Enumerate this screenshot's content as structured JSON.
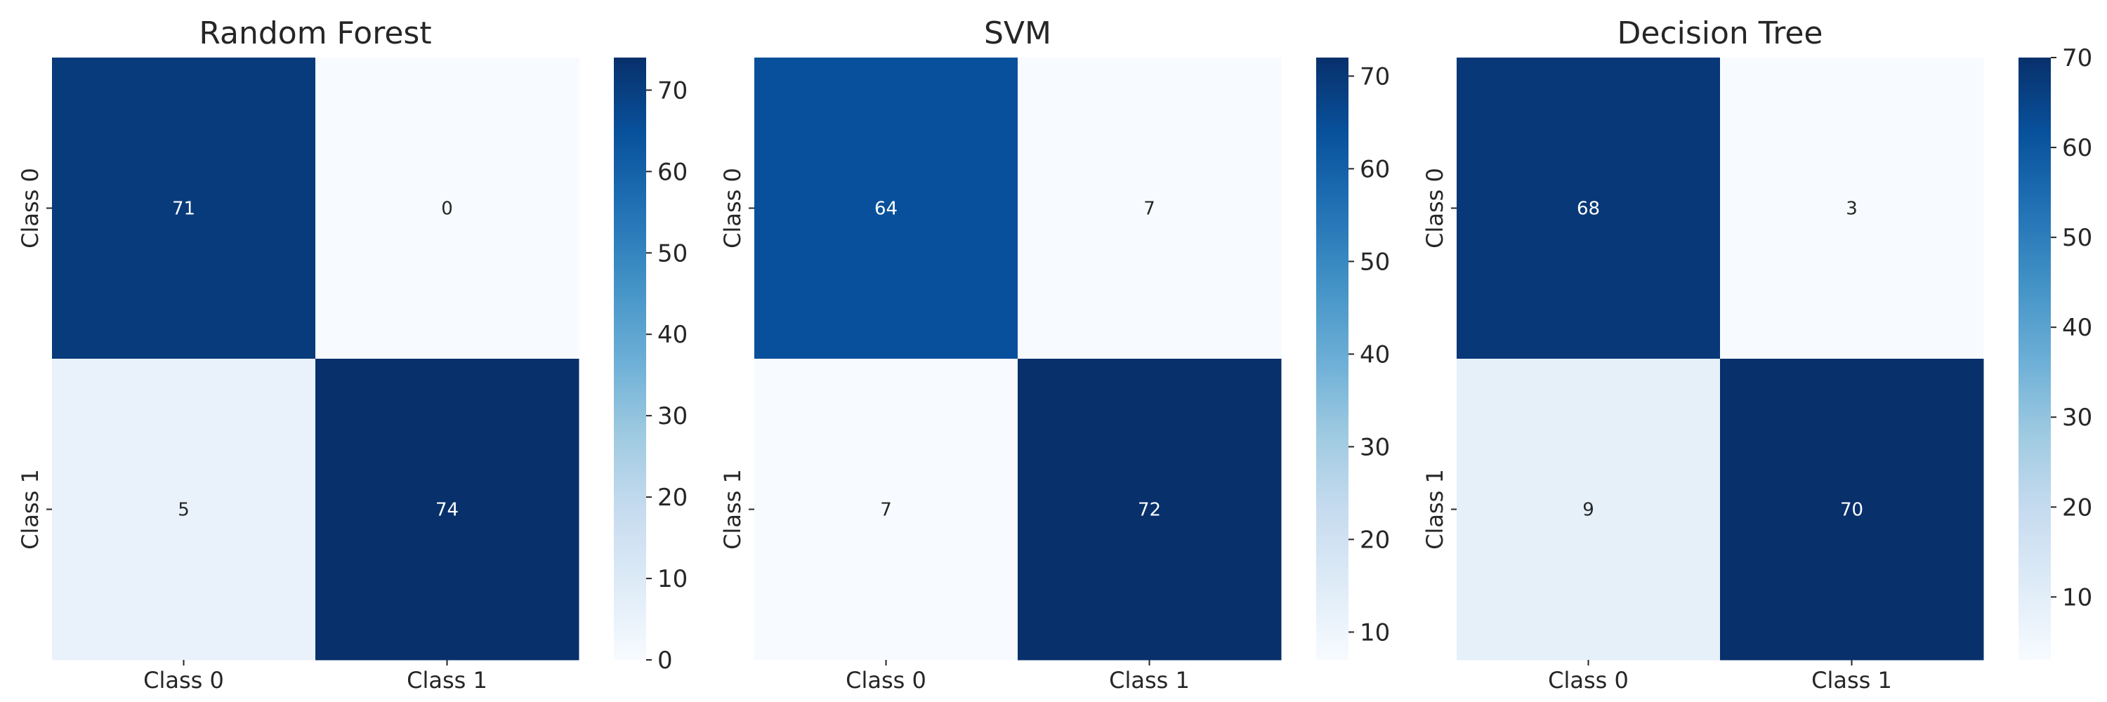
{
  "chart_data": [
    {
      "type": "heatmap",
      "title": "Random Forest",
      "x_categories": [
        "Class 0",
        "Class 1"
      ],
      "y_categories": [
        "Class 0",
        "Class 1"
      ],
      "matrix": [
        [
          71,
          0
        ],
        [
          5,
          74
        ]
      ],
      "colorbar": {
        "min": 0,
        "max": 74,
        "ticks": [
          0,
          10,
          20,
          30,
          40,
          50,
          60,
          70
        ]
      },
      "colormap": "Blues"
    },
    {
      "type": "heatmap",
      "title": "SVM",
      "x_categories": [
        "Class 0",
        "Class 1"
      ],
      "y_categories": [
        "Class 0",
        "Class 1"
      ],
      "matrix": [
        [
          64,
          7
        ],
        [
          7,
          72
        ]
      ],
      "colorbar": {
        "min": 7,
        "max": 72,
        "ticks": [
          10,
          20,
          30,
          40,
          50,
          60,
          70
        ]
      },
      "colormap": "Blues"
    },
    {
      "type": "heatmap",
      "title": "Decision Tree",
      "x_categories": [
        "Class 0",
        "Class 1"
      ],
      "y_categories": [
        "Class 0",
        "Class 1"
      ],
      "matrix": [
        [
          68,
          3
        ],
        [
          9,
          70
        ]
      ],
      "colorbar": {
        "min": 3,
        "max": 70,
        "ticks": [
          10,
          20,
          30,
          40,
          50,
          60,
          70
        ]
      },
      "colormap": "Blues"
    }
  ],
  "colors": {
    "blues_low": "#f7fbff",
    "blues_high": "#08306b",
    "text_dark": "#262626",
    "text_light": "#ffffff"
  }
}
